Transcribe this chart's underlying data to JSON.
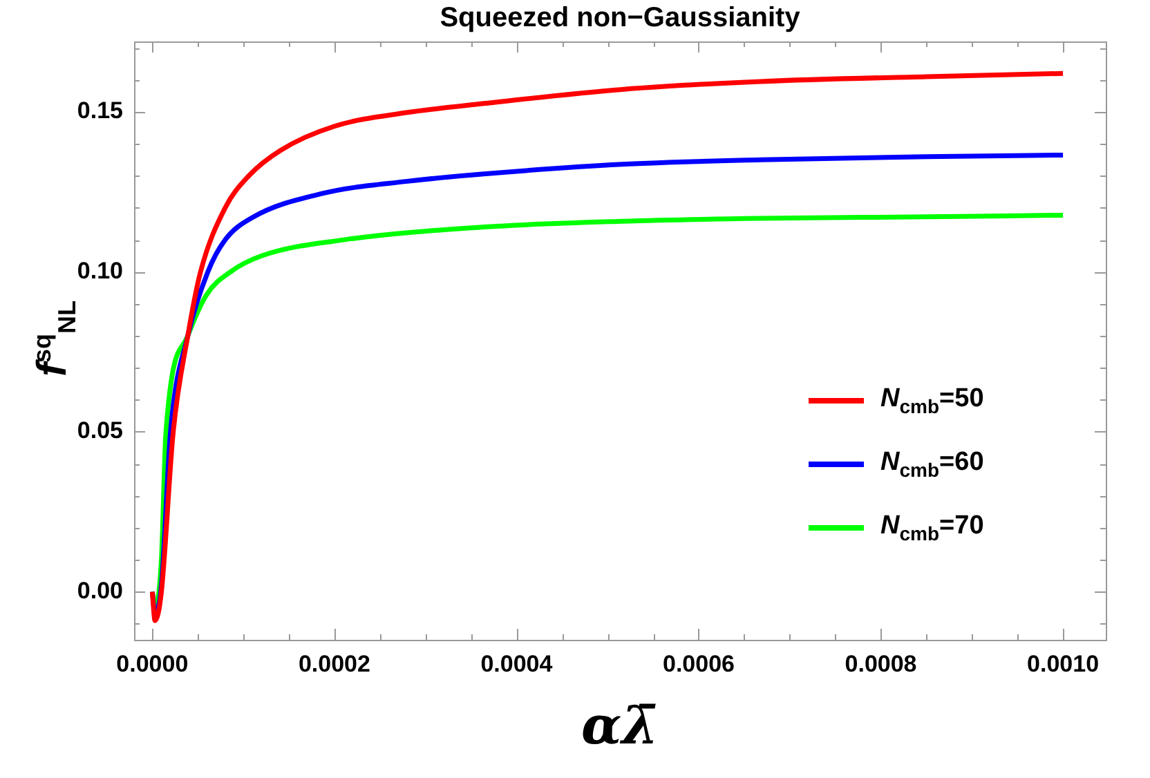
{
  "chart_data": {
    "type": "line",
    "title": "Squeezed non−Gaussianity",
    "xlabel": "αλ̄",
    "ylabel": "f$^{sq}$$_{NL}$",
    "xlim": [
      -2e-05,
      0.001047
    ],
    "ylim": [
      -0.015,
      0.172
    ],
    "xticks": [
      {
        "value": 0,
        "label": "0.0000"
      },
      {
        "value": 5e-05,
        "label": null
      },
      {
        "value": 0.0001,
        "label": null
      },
      {
        "value": 0.00015,
        "label": null
      },
      {
        "value": 0.0002,
        "label": "0.0002"
      },
      {
        "value": 0.00025,
        "label": null
      },
      {
        "value": 0.0003,
        "label": null
      },
      {
        "value": 0.00035,
        "label": null
      },
      {
        "value": 0.0004,
        "label": "0.0004"
      },
      {
        "value": 0.00045,
        "label": null
      },
      {
        "value": 0.0005,
        "label": null
      },
      {
        "value": 0.00055,
        "label": null
      },
      {
        "value": 0.0006,
        "label": "0.0006"
      },
      {
        "value": 0.00065,
        "label": null
      },
      {
        "value": 0.0007,
        "label": null
      },
      {
        "value": 0.00075,
        "label": null
      },
      {
        "value": 0.0008,
        "label": "0.0008"
      },
      {
        "value": 0.00085,
        "label": null
      },
      {
        "value": 0.0009,
        "label": null
      },
      {
        "value": 0.00095,
        "label": null
      },
      {
        "value": 0.001,
        "label": "0.0010"
      }
    ],
    "yticks": [
      {
        "value": -0.01,
        "label": null
      },
      {
        "value": 0,
        "label": "0.00"
      },
      {
        "value": 0.01,
        "label": null
      },
      {
        "value": 0.02,
        "label": null
      },
      {
        "value": 0.03,
        "label": null
      },
      {
        "value": 0.04,
        "label": null
      },
      {
        "value": 0.05,
        "label": "0.05"
      },
      {
        "value": 0.06,
        "label": null
      },
      {
        "value": 0.07,
        "label": null
      },
      {
        "value": 0.08,
        "label": null
      },
      {
        "value": 0.09,
        "label": null
      },
      {
        "value": 0.1,
        "label": "0.10"
      },
      {
        "value": 0.11,
        "label": null
      },
      {
        "value": 0.12,
        "label": null
      },
      {
        "value": 0.13,
        "label": null
      },
      {
        "value": 0.14,
        "label": null
      },
      {
        "value": 0.15,
        "label": "0.15"
      },
      {
        "value": 0.16,
        "label": null
      },
      {
        "value": 0.17,
        "label": null
      }
    ],
    "grid": false,
    "legend": "right",
    "marker": "none",
    "line_style": "solid",
    "series": [
      {
        "name": "N$_{cmb}$=50",
        "color": "#ff0000",
        "x": [
          0,
          3e-06,
          1e-05,
          2.3e-05,
          3.9e-05,
          5.3e-05,
          8e-05,
          0.000106,
          0.000141,
          0.0002,
          0.00028,
          0.000364,
          0.000516,
          0.000668,
          0.00085,
          0.001
        ],
        "values": [
          0,
          -0.009,
          0.0,
          0.05,
          0.08,
          0.1,
          0.12,
          0.13,
          0.138,
          0.1455,
          0.1498,
          0.1526,
          0.157,
          0.1595,
          0.161,
          0.162
        ]
      },
      {
        "name": "N$_{cmb}$=60",
        "color": "#0000ff",
        "x": [
          0,
          3e-06,
          1e-05,
          2e-05,
          3.9e-05,
          6.1e-05,
          8e-05,
          0.00011,
          0.000187,
          0.00028,
          0.000364,
          0.000516,
          0.000668,
          0.00085,
          0.001
        ],
        "values": [
          0,
          -0.007,
          0.002,
          0.05,
          0.08,
          0.1,
          0.11,
          0.117,
          0.1245,
          0.1283,
          0.1306,
          0.1336,
          0.135,
          0.136,
          0.1365
        ]
      },
      {
        "name": "N$_{cmb}$=70",
        "color": "#00ff00",
        "x": [
          0,
          3e-06,
          1e-05,
          1.5e-05,
          3.9e-05,
          6e-05,
          8.6e-05,
          0.00012,
          0.00021,
          0.000364,
          0.000516,
          0.000668,
          0.00085,
          0.001
        ],
        "values": [
          0,
          -0.005,
          0.01,
          0.05,
          0.08,
          0.093,
          0.1,
          0.105,
          0.11,
          0.114,
          0.1158,
          0.1167,
          0.1172,
          0.1177
        ]
      }
    ]
  }
}
